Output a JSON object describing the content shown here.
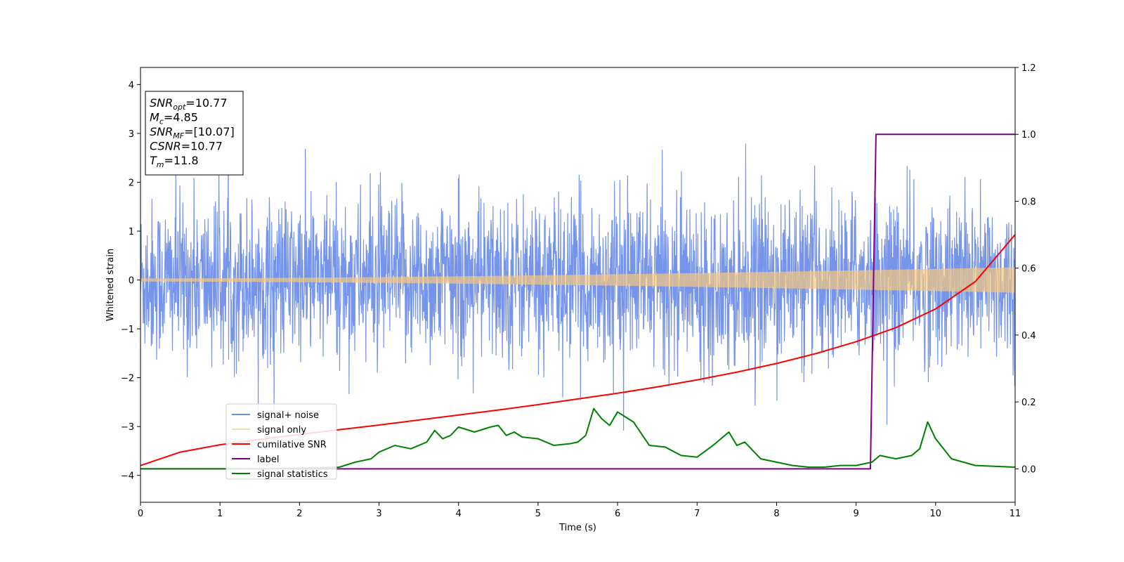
{
  "chart_data": {
    "type": "line",
    "xlabel": "Time (s)",
    "ylabel": "Whitened strain",
    "xlim": [
      0,
      11
    ],
    "ylim_left": [
      -4.55,
      4.35
    ],
    "ylim_right": [
      -0.1,
      1.2
    ],
    "x_ticks": [
      0,
      1,
      2,
      3,
      4,
      5,
      6,
      7,
      8,
      9,
      10,
      11
    ],
    "y_left_ticks": [
      -4,
      -3,
      -2,
      -1,
      0,
      1,
      2,
      3,
      4
    ],
    "y_right_ticks": [
      0.0,
      0.2,
      0.4,
      0.6,
      0.8,
      1.0,
      1.2
    ],
    "grid": false,
    "legend_position": "lower-left",
    "info_box": [
      {
        "base": "SNR",
        "sub": "opt",
        "value": "=10.77"
      },
      {
        "base": "M",
        "sub": "c",
        "value": "=4.85"
      },
      {
        "base": "SNR",
        "sub": "MF",
        "value": "=[10.07]"
      },
      {
        "base": "CSNR",
        "sub": "",
        "value": "=10.77"
      },
      {
        "base": "T",
        "sub": "m",
        "value": "=11.8"
      }
    ],
    "series": [
      {
        "name": "signal+ noise",
        "color": "#6f8ee8",
        "axis": "left",
        "kind": "noise",
        "std": 0.82
      },
      {
        "name": "signal only",
        "color": "#f5c77e",
        "axis": "left",
        "kind": "chirp",
        "amplitude_start": 0.03,
        "amplitude_end": 0.26
      },
      {
        "name": "cumilative SNR",
        "color": "#ff0000",
        "axis": "right",
        "x": [
          0,
          0.5,
          1,
          1.5,
          2,
          2.5,
          3,
          3.5,
          4,
          4.5,
          5,
          5.5,
          6,
          6.5,
          7,
          7.5,
          8,
          8.5,
          9,
          9.5,
          10,
          10.5,
          11
        ],
        "y": [
          0.01,
          0.05,
          0.072,
          0.088,
          0.103,
          0.117,
          0.131,
          0.146,
          0.161,
          0.176,
          0.192,
          0.209,
          0.226,
          0.245,
          0.266,
          0.289,
          0.315,
          0.345,
          0.38,
          0.422,
          0.478,
          0.56,
          0.7
        ]
      },
      {
        "name": "label",
        "color": "#800080",
        "axis": "right",
        "x": [
          0,
          9.18,
          9.25,
          11
        ],
        "y": [
          0,
          0,
          1,
          1
        ]
      },
      {
        "name": "signal statistics",
        "color": "#008000",
        "axis": "right",
        "x": [
          0,
          0.5,
          1,
          1.5,
          2,
          2.5,
          2.7,
          2.9,
          3.0,
          3.2,
          3.4,
          3.6,
          3.7,
          3.8,
          3.9,
          4.0,
          4.2,
          4.4,
          4.5,
          4.6,
          4.7,
          4.8,
          5.0,
          5.2,
          5.4,
          5.5,
          5.6,
          5.7,
          5.8,
          5.9,
          6.0,
          6.2,
          6.4,
          6.6,
          6.8,
          7.0,
          7.2,
          7.4,
          7.5,
          7.6,
          7.8,
          8.0,
          8.2,
          8.4,
          8.6,
          8.8,
          9.0,
          9.2,
          9.3,
          9.5,
          9.7,
          9.8,
          9.9,
          10.0,
          10.2,
          10.5,
          11
        ],
        "y": [
          0.0,
          0.0,
          0.0,
          0.0,
          0.002,
          0.005,
          0.02,
          0.03,
          0.05,
          0.07,
          0.06,
          0.08,
          0.115,
          0.09,
          0.1,
          0.125,
          0.11,
          0.125,
          0.13,
          0.1,
          0.11,
          0.095,
          0.09,
          0.07,
          0.075,
          0.08,
          0.1,
          0.18,
          0.15,
          0.13,
          0.17,
          0.14,
          0.07,
          0.065,
          0.04,
          0.035,
          0.07,
          0.11,
          0.07,
          0.08,
          0.03,
          0.02,
          0.01,
          0.005,
          0.005,
          0.01,
          0.01,
          0.02,
          0.04,
          0.03,
          0.04,
          0.06,
          0.14,
          0.09,
          0.03,
          0.01,
          0.005
        ]
      }
    ]
  }
}
